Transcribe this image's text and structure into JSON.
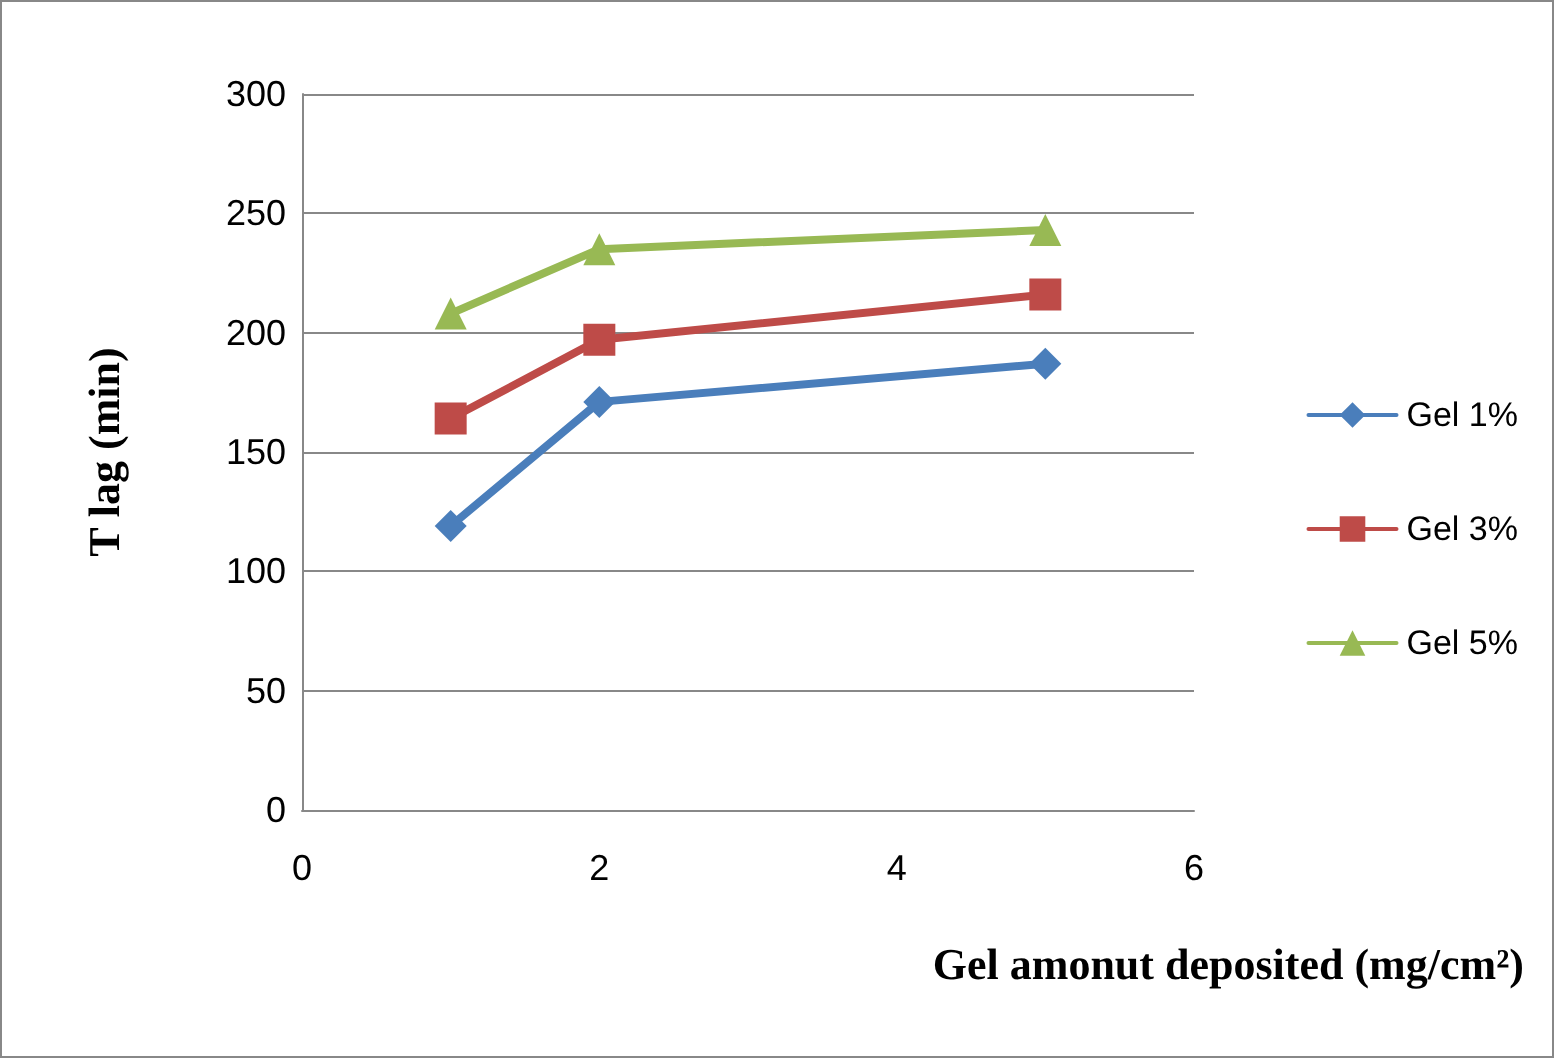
{
  "chart_data": {
    "type": "line",
    "xlabel": "Gel amonut deposited (mg/cm²)",
    "ylabel": "T lag (min)",
    "x": [
      1,
      2,
      5
    ],
    "series": [
      {
        "name": "Gel 1%",
        "color": "#4a7ebb",
        "marker": "diamond",
        "values": [
          119,
          171,
          187
        ]
      },
      {
        "name": "Gel 3%",
        "color": "#be4b48",
        "marker": "square",
        "values": [
          164,
          197,
          216
        ]
      },
      {
        "name": "Gel 5%",
        "color": "#98b954",
        "marker": "triangle",
        "values": [
          208,
          235,
          243
        ]
      }
    ],
    "xlim": [
      0,
      6
    ],
    "xticks": [
      0,
      2,
      4,
      6
    ],
    "ylim": [
      0,
      300
    ],
    "yticks": [
      0,
      50,
      100,
      150,
      200,
      250,
      300
    ],
    "grid": "y",
    "legend": "right",
    "line_style": "solid"
  }
}
